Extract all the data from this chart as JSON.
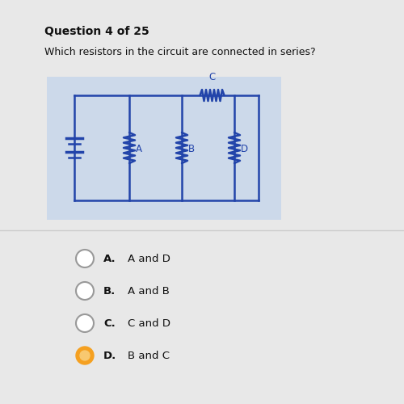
{
  "title": "Question 4 of 25",
  "question": "Which resistors in the circuit are connected in series?",
  "circuit_bg": "#ccd9ea",
  "circuit_color": "#2244aa",
  "options": [
    {
      "letter": "A",
      "text": "A and D",
      "selected": false
    },
    {
      "letter": "B",
      "text": "A and B",
      "selected": false
    },
    {
      "letter": "C",
      "text": "C and D",
      "selected": false
    },
    {
      "letter": "D",
      "text": "B and C",
      "selected": true
    }
  ],
  "selected_fill": "#f5a020",
  "selected_inner": "#f8c870",
  "unselected_edge": "#999999",
  "page_bg": "#e8e8e8",
  "divider_color": "#cccccc",
  "text_color": "#111111"
}
